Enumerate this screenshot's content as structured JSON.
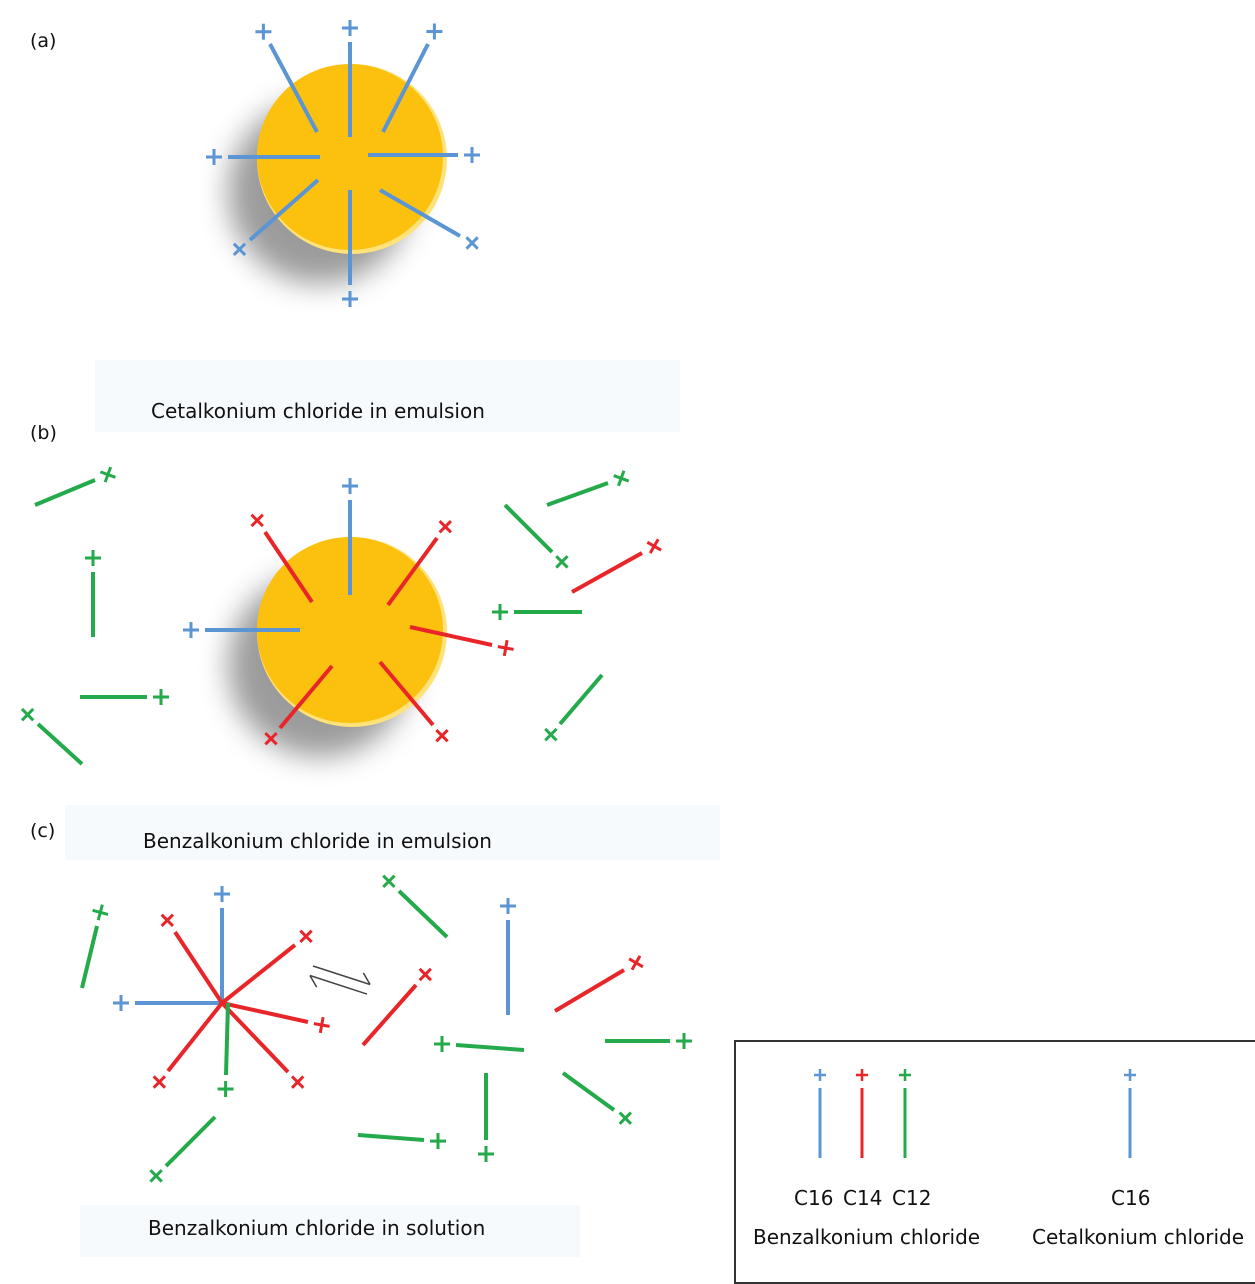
{
  "panels": [
    {
      "label": "(a)",
      "caption": "Cetalkonium chloride in emulsion"
    },
    {
      "label": "(b)",
      "caption": "Benzalkonium chloride in emulsion"
    },
    {
      "label": "(c)",
      "caption": "Benzalkonium chloride in solution"
    }
  ],
  "legend": {
    "groups": [
      {
        "name": "Benzalkonium chloride",
        "chains": [
          "C16",
          "C14",
          "C12"
        ]
      },
      {
        "name": "Cetalkonium chloride",
        "chains": [
          "C16"
        ]
      }
    ]
  },
  "colors": {
    "C16": "#5b95d3",
    "C14": "#e8262a",
    "C12": "#24a94b",
    "droplet": "#fcc10f",
    "droplet_edge": "#ffe27a"
  }
}
